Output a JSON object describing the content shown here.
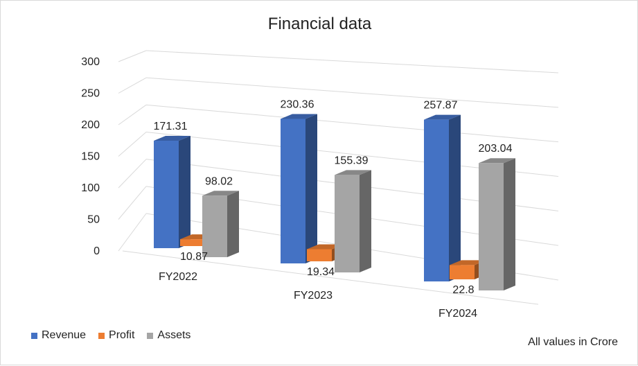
{
  "chart_data": {
    "type": "bar",
    "title": "Financial data",
    "categories": [
      "FY2022",
      "FY2023",
      "FY2024"
    ],
    "series": [
      {
        "name": "Revenue",
        "values": [
          171.31,
          230.36,
          257.87
        ],
        "color": "#4472c4",
        "labels": [
          "171.31",
          "230.36",
          "257.87"
        ]
      },
      {
        "name": "Profit",
        "values": [
          10.87,
          19.34,
          22.8
        ],
        "color": "#ed7d31",
        "labels": [
          "10.87",
          "19.34",
          "22.8"
        ]
      },
      {
        "name": "Assets",
        "values": [
          98.02,
          155.39,
          203.04
        ],
        "color": "#a5a5a5",
        "labels": [
          "98.02",
          "155.39",
          "203.04"
        ]
      }
    ],
    "yticks": [
      "0",
      "50",
      "100",
      "150",
      "200",
      "250",
      "300"
    ],
    "ylim": [
      0,
      300
    ],
    "grid": true,
    "legend_position": "bottom-left",
    "three_d": true
  },
  "footnote": "All values in Crore"
}
